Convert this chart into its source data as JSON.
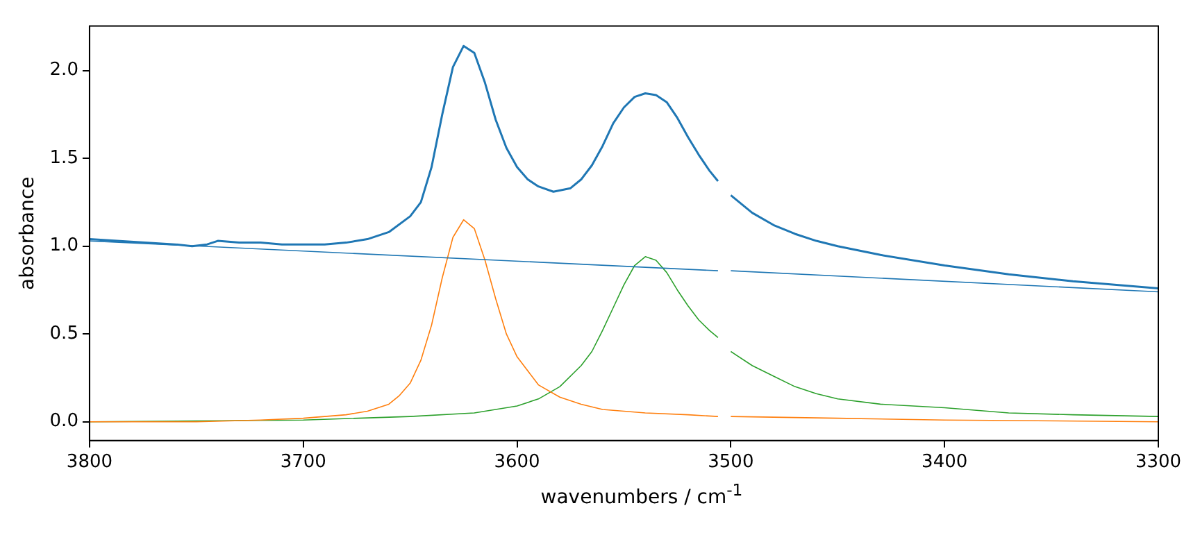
{
  "chart_data": {
    "type": "line",
    "xlabel": "wavenumbers / cm$^{-1}$",
    "ylabel": "absorbance",
    "xlim": [
      3800,
      3300
    ],
    "xticks": [
      3800,
      3700,
      3600,
      3500,
      3400,
      3300
    ],
    "ylim": [
      -0.107,
      2.253
    ],
    "yticks": [
      {
        "value": 0,
        "label": "0.0"
      },
      {
        "value": 0.5,
        "label": "0.5"
      },
      {
        "value": 1,
        "label": "1.0"
      },
      {
        "value": 1.5,
        "label": "1.5"
      },
      {
        "value": 2,
        "label": "2.0"
      }
    ],
    "grid": false,
    "legend": false,
    "marker": "none",
    "line_style": "solid",
    "series": [
      {
        "color": "#1f77b4",
        "x": [
          3800,
          3760,
          3752,
          3745,
          3740,
          3730,
          3720,
          3710,
          3700,
          3690,
          3680,
          3670,
          3660,
          3650,
          3645,
          3640,
          3635,
          3630,
          3625,
          3620,
          3615,
          3610,
          3605,
          3600,
          3595,
          3590,
          3583,
          3575,
          3570,
          3565,
          3560,
          3555,
          3550,
          3545,
          3540,
          3535,
          3530,
          3525,
          3520,
          3515,
          3510,
          3506,
          3503,
          3500,
          3490,
          3480,
          3470,
          3460,
          3450,
          3430,
          3400,
          3370,
          3340,
          3300
        ],
        "values": [
          1.04,
          1.01,
          1.0,
          1.01,
          1.03,
          1.02,
          1.02,
          1.01,
          1.01,
          1.01,
          1.02,
          1.04,
          1.08,
          1.17,
          1.25,
          1.45,
          1.75,
          2.02,
          2.14,
          2.1,
          1.93,
          1.72,
          1.56,
          1.45,
          1.38,
          1.34,
          1.31,
          1.33,
          1.38,
          1.46,
          1.57,
          1.7,
          1.79,
          1.85,
          1.87,
          1.86,
          1.82,
          1.73,
          1.62,
          1.52,
          1.43,
          1.37,
          null,
          1.29,
          1.19,
          1.12,
          1.07,
          1.03,
          1.0,
          0.95,
          0.89,
          0.84,
          0.8,
          0.76
        ]
      },
      {
        "color": "#1f77b4",
        "x": [
          3800,
          3506,
          3503,
          3500,
          3300
        ],
        "values": [
          1.03,
          0.86,
          null,
          0.86,
          0.74
        ]
      },
      {
        "color": "#ff7f0e",
        "x": [
          3800,
          3750,
          3720,
          3700,
          3680,
          3670,
          3660,
          3655,
          3650,
          3645,
          3640,
          3635,
          3630,
          3625,
          3620,
          3615,
          3610,
          3605,
          3600,
          3590,
          3580,
          3570,
          3560,
          3540,
          3520,
          3506,
          3503,
          3500,
          3450,
          3400,
          3300
        ],
        "values": [
          0.0,
          0.0,
          0.01,
          0.02,
          0.04,
          0.06,
          0.1,
          0.15,
          0.22,
          0.35,
          0.55,
          0.82,
          1.05,
          1.15,
          1.1,
          0.92,
          0.7,
          0.5,
          0.37,
          0.21,
          0.14,
          0.1,
          0.07,
          0.05,
          0.04,
          0.03,
          null,
          0.03,
          0.02,
          0.01,
          0.0
        ]
      },
      {
        "color": "#2ca02c",
        "x": [
          3800,
          3700,
          3650,
          3620,
          3600,
          3590,
          3580,
          3570,
          3565,
          3560,
          3555,
          3550,
          3545,
          3540,
          3535,
          3530,
          3525,
          3520,
          3515,
          3510,
          3506,
          3503,
          3500,
          3490,
          3480,
          3470,
          3460,
          3450,
          3430,
          3400,
          3370,
          3340,
          3300
        ],
        "values": [
          0.0,
          0.01,
          0.03,
          0.05,
          0.09,
          0.13,
          0.2,
          0.32,
          0.4,
          0.52,
          0.65,
          0.78,
          0.89,
          0.94,
          0.92,
          0.85,
          0.75,
          0.66,
          0.58,
          0.52,
          0.48,
          null,
          0.4,
          0.32,
          0.26,
          0.2,
          0.16,
          0.13,
          0.1,
          0.08,
          0.05,
          0.04,
          0.03
        ]
      }
    ]
  }
}
